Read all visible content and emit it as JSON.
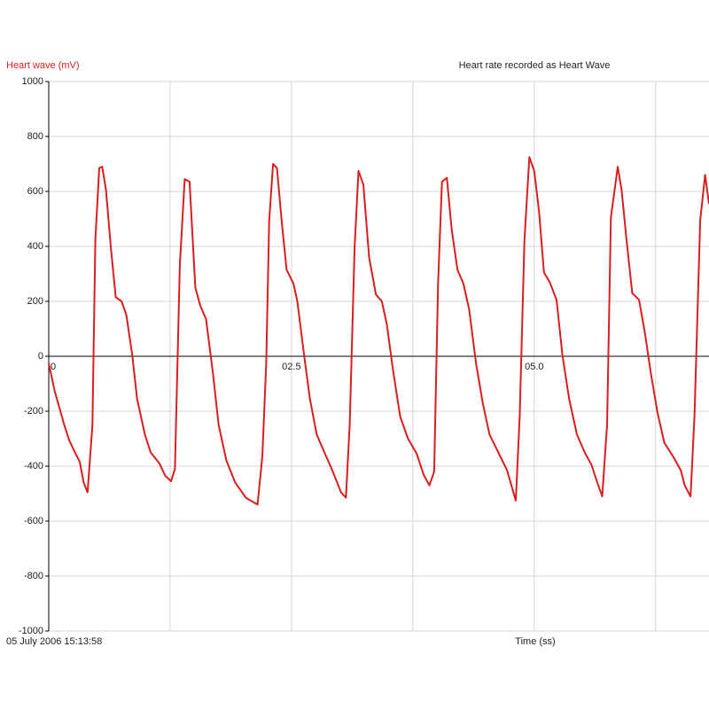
{
  "chart_data": {
    "type": "line",
    "title": "Heart rate recorded as Heart Wave",
    "y_label": "Heart wave (mV)",
    "x_label": "Time (ss)",
    "timestamp": "05 July 2006  15:13:58",
    "color": "#d81e1e",
    "x": [
      0.0,
      0.06,
      0.16,
      0.21,
      0.27,
      0.32,
      0.36,
      0.4,
      0.45,
      0.48,
      0.52,
      0.55,
      0.59,
      0.64,
      0.69,
      0.75,
      0.8,
      0.86,
      0.91,
      0.99,
      1.05,
      1.14,
      1.2,
      1.26,
      1.3,
      1.35,
      1.4,
      1.45,
      1.51,
      1.56,
      1.62,
      1.69,
      1.75,
      1.83,
      1.92,
      2.03,
      2.15,
      2.2,
      2.24,
      2.27,
      2.31,
      2.35,
      2.4,
      2.45,
      2.52,
      2.56,
      2.63,
      2.69,
      2.76,
      2.84,
      2.92,
      3.01,
      3.06,
      3.1,
      3.15,
      3.19,
      3.24,
      3.3,
      3.37,
      3.43,
      3.48,
      3.55,
      3.62,
      3.7,
      3.79,
      3.86,
      3.92,
      3.97,
      4.01,
      4.05,
      4.1,
      4.15,
      4.21,
      4.27,
      4.33,
      4.4,
      4.47,
      4.54,
      4.63,
      4.72,
      4.81,
      4.85,
      4.9,
      4.95,
      5.0,
      5.05,
      5.1,
      5.16,
      5.23,
      5.29,
      5.36,
      5.44,
      5.52,
      5.59,
      5.65,
      5.7,
      5.75,
      5.79,
      5.86,
      5.9,
      5.95,
      6.01,
      6.08,
      6.14,
      6.2,
      6.27,
      6.34,
      6.43,
      6.51,
      6.55,
      6.61,
      6.65,
      6.71,
      6.76,
      6.8
    ],
    "values": [
      -25,
      -125,
      -250,
      -305,
      -350,
      -385,
      -460,
      -495,
      -250,
      425,
      685,
      690,
      605,
      395,
      215,
      200,
      150,
      5,
      -155,
      -285,
      -350,
      -390,
      -435,
      -455,
      -410,
      330,
      645,
      635,
      250,
      185,
      135,
      -60,
      -250,
      -380,
      -460,
      -515,
      -540,
      -365,
      -25,
      490,
      700,
      685,
      490,
      315,
      265,
      200,
      5,
      -155,
      -285,
      -350,
      -415,
      -495,
      -515,
      -250,
      395,
      675,
      625,
      360,
      225,
      200,
      120,
      -60,
      -220,
      -300,
      -355,
      -430,
      -470,
      -420,
      265,
      635,
      650,
      460,
      315,
      265,
      170,
      -25,
      -170,
      -285,
      -350,
      -415,
      -525,
      -220,
      425,
      725,
      675,
      525,
      305,
      270,
      205,
      5,
      -155,
      -285,
      -350,
      -395,
      -460,
      -510,
      -250,
      505,
      690,
      605,
      425,
      230,
      205,
      85,
      -60,
      -205,
      -315,
      -365,
      -415,
      -470,
      -510,
      -220,
      495,
      660,
      555
    ],
    "xlim": [
      0,
      6.8
    ],
    "xticks": [
      0,
      {
        "value": 2.5,
        "label": "02.5"
      },
      {
        "value": 5.0,
        "label": "05.0"
      }
    ],
    "xgrid": [
      0,
      1.25,
      2.5,
      3.75,
      5.0,
      6.25
    ],
    "ylim": [
      -1000,
      1000
    ],
    "yticks": [
      -1000,
      -800,
      -600,
      -400,
      -200,
      0,
      200,
      400,
      600,
      800,
      1000
    ],
    "grid": true
  }
}
